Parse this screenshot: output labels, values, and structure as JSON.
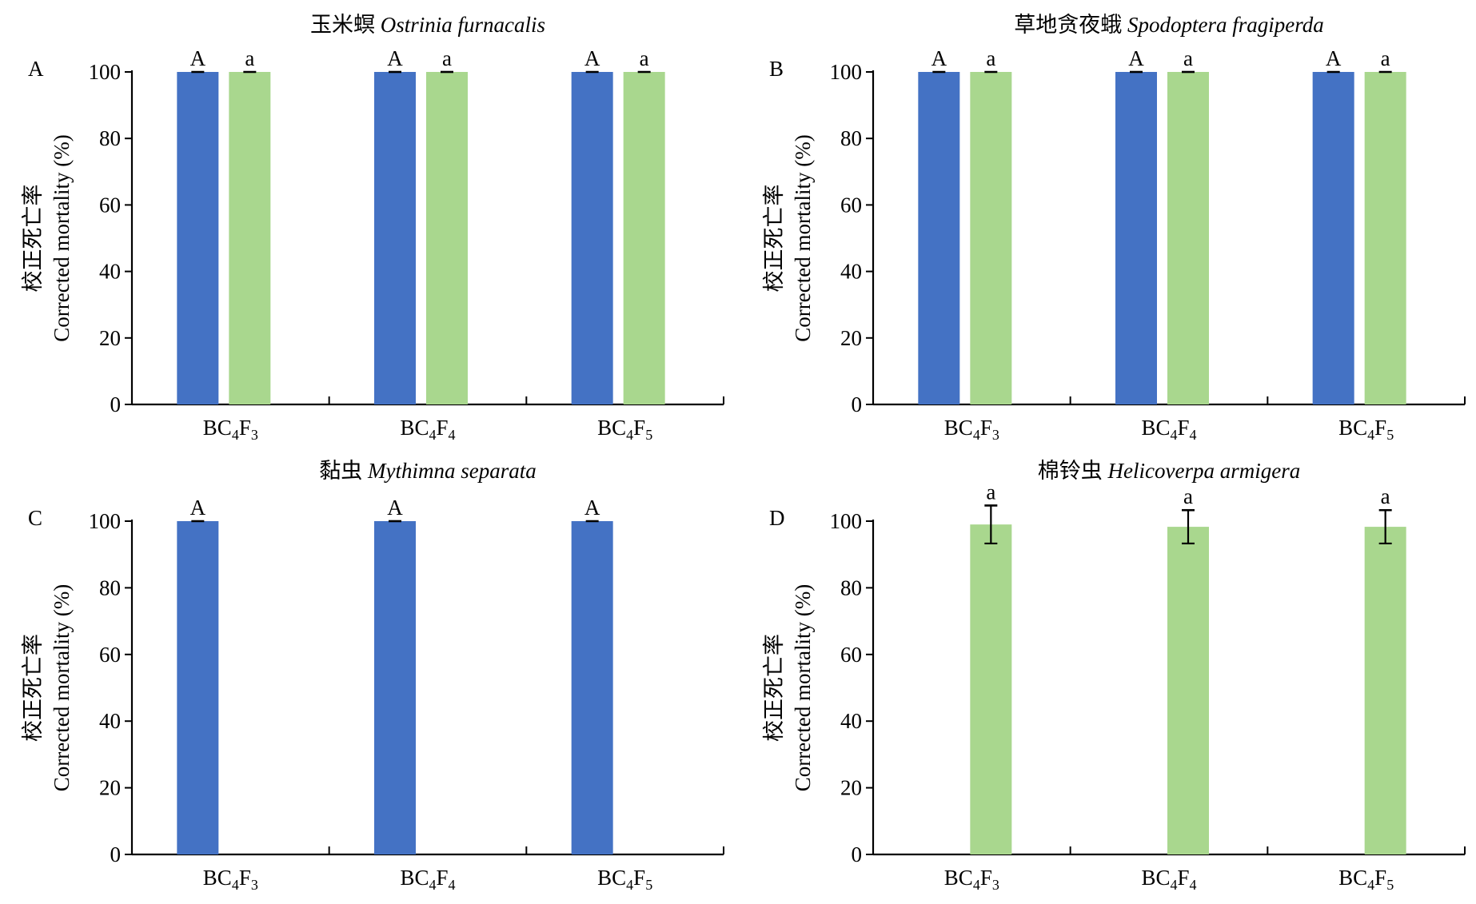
{
  "colors": {
    "series_a": "#4472c4",
    "series_b": "#a9d78e",
    "axis": "#000000"
  },
  "chart_data": [
    {
      "panel": "A",
      "title_cn": "玉米螟",
      "title_latin": "Ostrinia furnacalis",
      "type": "bar",
      "ylabel_cn": "校正死亡率",
      "ylabel_en": "Corrected mortality (%)",
      "ylim": [
        0,
        100
      ],
      "yticks": [
        0,
        20,
        40,
        60,
        80,
        100
      ],
      "categories": [
        {
          "base": "BC",
          "sub1": "4",
          "mid": "F",
          "sub2": "3"
        },
        {
          "base": "BC",
          "sub1": "4",
          "mid": "F",
          "sub2": "4"
        },
        {
          "base": "BC",
          "sub1": "4",
          "mid": "F",
          "sub2": "5"
        }
      ],
      "series": [
        {
          "color": "#4472c4",
          "values": [
            100,
            100,
            100
          ],
          "errors": [
            0,
            0,
            0
          ],
          "labels": [
            "A",
            "A",
            "A"
          ]
        },
        {
          "color": "#a9d78e",
          "values": [
            100,
            100,
            100
          ],
          "errors": [
            0,
            0,
            0
          ],
          "labels": [
            "a",
            "a",
            "a"
          ]
        }
      ]
    },
    {
      "panel": "B",
      "title_cn": "草地贪夜蛾",
      "title_latin": "Spodoptera fragiperda",
      "type": "bar",
      "ylabel_cn": "校正死亡率",
      "ylabel_en": "Corrected mortality (%)",
      "ylim": [
        0,
        100
      ],
      "yticks": [
        0,
        20,
        40,
        60,
        80,
        100
      ],
      "categories": [
        {
          "base": "BC",
          "sub1": "4",
          "mid": "F",
          "sub2": "3"
        },
        {
          "base": "BC",
          "sub1": "4",
          "mid": "F",
          "sub2": "4"
        },
        {
          "base": "BC",
          "sub1": "4",
          "mid": "F",
          "sub2": "5"
        }
      ],
      "series": [
        {
          "color": "#4472c4",
          "values": [
            100,
            100,
            100
          ],
          "errors": [
            0,
            0,
            0
          ],
          "labels": [
            "A",
            "A",
            "A"
          ]
        },
        {
          "color": "#a9d78e",
          "values": [
            100,
            100,
            100
          ],
          "errors": [
            0,
            0,
            0
          ],
          "labels": [
            "a",
            "a",
            "a"
          ]
        }
      ]
    },
    {
      "panel": "C",
      "title_cn": "黏虫",
      "title_latin": "Mythimna separata",
      "type": "bar",
      "ylabel_cn": "校正死亡率",
      "ylabel_en": "Corrected mortality (%)",
      "ylim": [
        0,
        100
      ],
      "yticks": [
        0,
        20,
        40,
        60,
        80,
        100
      ],
      "categories": [
        {
          "base": "BC",
          "sub1": "4",
          "mid": "F",
          "sub2": "3"
        },
        {
          "base": "BC",
          "sub1": "4",
          "mid": "F",
          "sub2": "4"
        },
        {
          "base": "BC",
          "sub1": "4",
          "mid": "F",
          "sub2": "5"
        }
      ],
      "series": [
        {
          "color": "#4472c4",
          "values": [
            100,
            100,
            100
          ],
          "errors": [
            0,
            0,
            0
          ],
          "labels": [
            "A",
            "A",
            "A"
          ]
        },
        {
          "color": "#a9d78e",
          "values": [
            null,
            null,
            null
          ],
          "errors": [
            null,
            null,
            null
          ],
          "labels": [
            "",
            "",
            ""
          ]
        }
      ]
    },
    {
      "panel": "D",
      "title_cn": "棉铃虫",
      "title_latin": "Helicoverpa armigera",
      "type": "bar",
      "ylabel_cn": "校正死亡率",
      "ylabel_en": "Corrected mortality (%)",
      "ylim": [
        0,
        100
      ],
      "yticks": [
        0,
        20,
        40,
        60,
        80,
        100
      ],
      "categories": [
        {
          "base": "BC",
          "sub1": "4",
          "mid": "F",
          "sub2": "3"
        },
        {
          "base": "BC",
          "sub1": "4",
          "mid": "F",
          "sub2": "4"
        },
        {
          "base": "BC",
          "sub1": "4",
          "mid": "F",
          "sub2": "5"
        }
      ],
      "series": [
        {
          "color": "#4472c4",
          "values": [
            null,
            null,
            null
          ],
          "errors": [
            null,
            null,
            null
          ],
          "labels": [
            "",
            "",
            ""
          ]
        },
        {
          "color": "#a9d78e",
          "values": [
            99,
            98.3,
            98.3
          ],
          "errors": [
            5.7,
            5,
            5
          ],
          "labels": [
            "a",
            "a",
            "a"
          ]
        }
      ]
    }
  ]
}
